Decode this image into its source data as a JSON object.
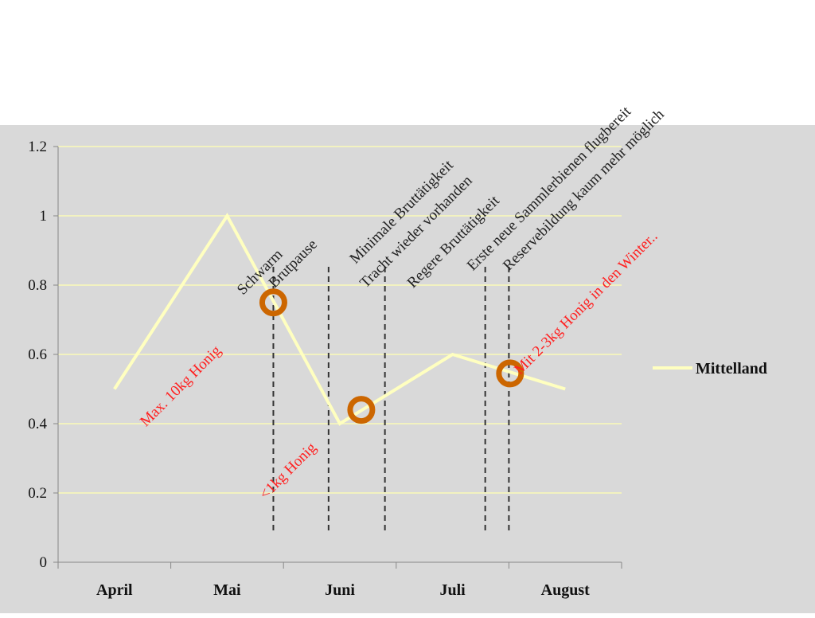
{
  "chart_data": {
    "type": "line",
    "title": "",
    "xlabel": "",
    "ylabel": "",
    "categories": [
      "April",
      "Mai",
      "Juni",
      "Juli",
      "August"
    ],
    "series": [
      {
        "name": "Mittelland",
        "values": [
          0.5,
          1.0,
          0.4,
          0.6,
          0.5
        ],
        "color": "#ffffc0"
      }
    ],
    "ylim": [
      0,
      1.2
    ],
    "yticks": [
      "0",
      "0.2",
      "0.4",
      "0.6",
      "0.8",
      "1",
      "1.2"
    ],
    "grid": true,
    "legend": "right",
    "markers": [
      {
        "x": 1.41,
        "y": 0.75,
        "color": "#cc6600"
      },
      {
        "x": 2.19,
        "y": 0.44,
        "color": "#cc6600"
      },
      {
        "x": 3.51,
        "y": 0.545,
        "color": "#cc6600"
      }
    ],
    "event_lines_x": [
      1.41,
      1.9,
      2.4,
      3.29,
      3.5
    ],
    "annotations": [
      {
        "text": "Schwarm",
        "color": "#222222",
        "x": 1.14,
        "y": 0.77
      },
      {
        "text": "Brutpause",
        "color": "#222222",
        "x": 1.42,
        "y": 0.79
      },
      {
        "text": "Minimale  Bruttätigkeit",
        "color": "#222222",
        "x": 2.14,
        "y": 0.86
      },
      {
        "text": "Tracht wieder vorhanden",
        "color": "#222222",
        "x": 2.23,
        "y": 0.79
      },
      {
        "text": "Regere Bruttätigkeit",
        "color": "#222222",
        "x": 2.65,
        "y": 0.79
      },
      {
        "text": "Erste neue Sammlerbienen  flugbereit",
        "color": "#222222",
        "x": 3.18,
        "y": 0.84
      },
      {
        "text": "Reservebildung kaum mehr möglich",
        "color": "#222222",
        "x": 3.5,
        "y": 0.84
      },
      {
        "text": "Max. 10kg Honig",
        "color": "#ff2020",
        "x": 0.28,
        "y": 0.39
      },
      {
        "text": "<1kg Honig",
        "color": "#ff2020",
        "x": 1.34,
        "y": 0.18
      },
      {
        "text": "Mit 2-3kg  Honig in den Winter..",
        "color": "#ff2020",
        "x": 3.6,
        "y": 0.54
      }
    ]
  }
}
